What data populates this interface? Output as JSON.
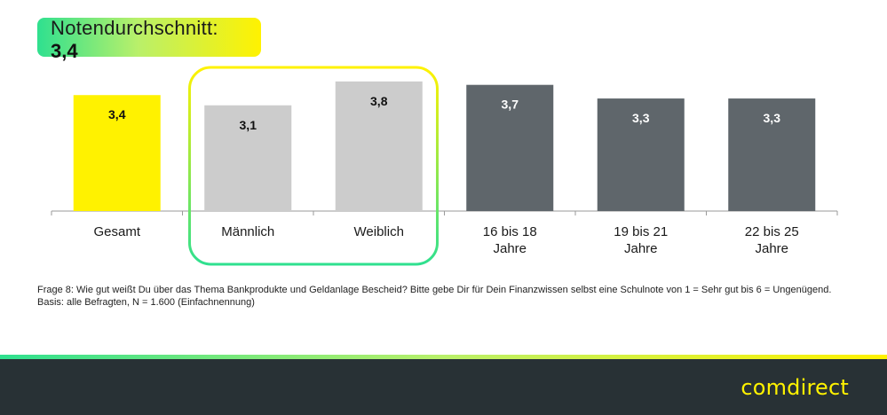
{
  "header": {
    "title": "Notendurchschnitt:",
    "value": "3,4"
  },
  "chart_data": {
    "type": "bar",
    "categories": [
      [
        "Gesamt"
      ],
      [
        "Männlich"
      ],
      [
        "Weiblich"
      ],
      [
        "16 bis 18",
        "Jahre"
      ],
      [
        "19 bis 21",
        "Jahre"
      ],
      [
        "22 bis 25",
        "Jahre"
      ]
    ],
    "values": [
      3.4,
      3.1,
      3.8,
      3.7,
      3.3,
      3.3
    ],
    "value_labels": [
      "3,4",
      "3,1",
      "3,8",
      "3,7",
      "3,3",
      "3,3"
    ],
    "bar_colors": [
      "#fff200",
      "#cccccc",
      "#cccccc",
      "#5f666b",
      "#5f666b",
      "#5f666b"
    ],
    "label_colors": [
      "#111111",
      "#111111",
      "#111111",
      "#ffffff",
      "#ffffff",
      "#ffffff"
    ],
    "ylim": [
      0,
      3.9
    ],
    "title": "",
    "xlabel": "",
    "ylabel": "",
    "grid": false,
    "highlight": {
      "categories": [
        "Männlich",
        "Weiblich"
      ],
      "colors": [
        "#fff200",
        "#2fe08f"
      ]
    }
  },
  "footnote": {
    "question": "Frage 8: Wie gut weißt Du über das Thema Bankprodukte und Geldanlage Bescheid? Bitte gebe Dir für Dein Finanzwissen selbst eine Schulnote von 1 = Sehr gut bis 6 = Ungenügend.",
    "basis": "Basis: alle Befragten, N = 1.600 (Einfachnennung)"
  },
  "footer": {
    "logo": "comdirect"
  },
  "colors": {
    "brand_yellow": "#fff200",
    "brand_green": "#2fe08f",
    "footer_bg": "#283135"
  }
}
